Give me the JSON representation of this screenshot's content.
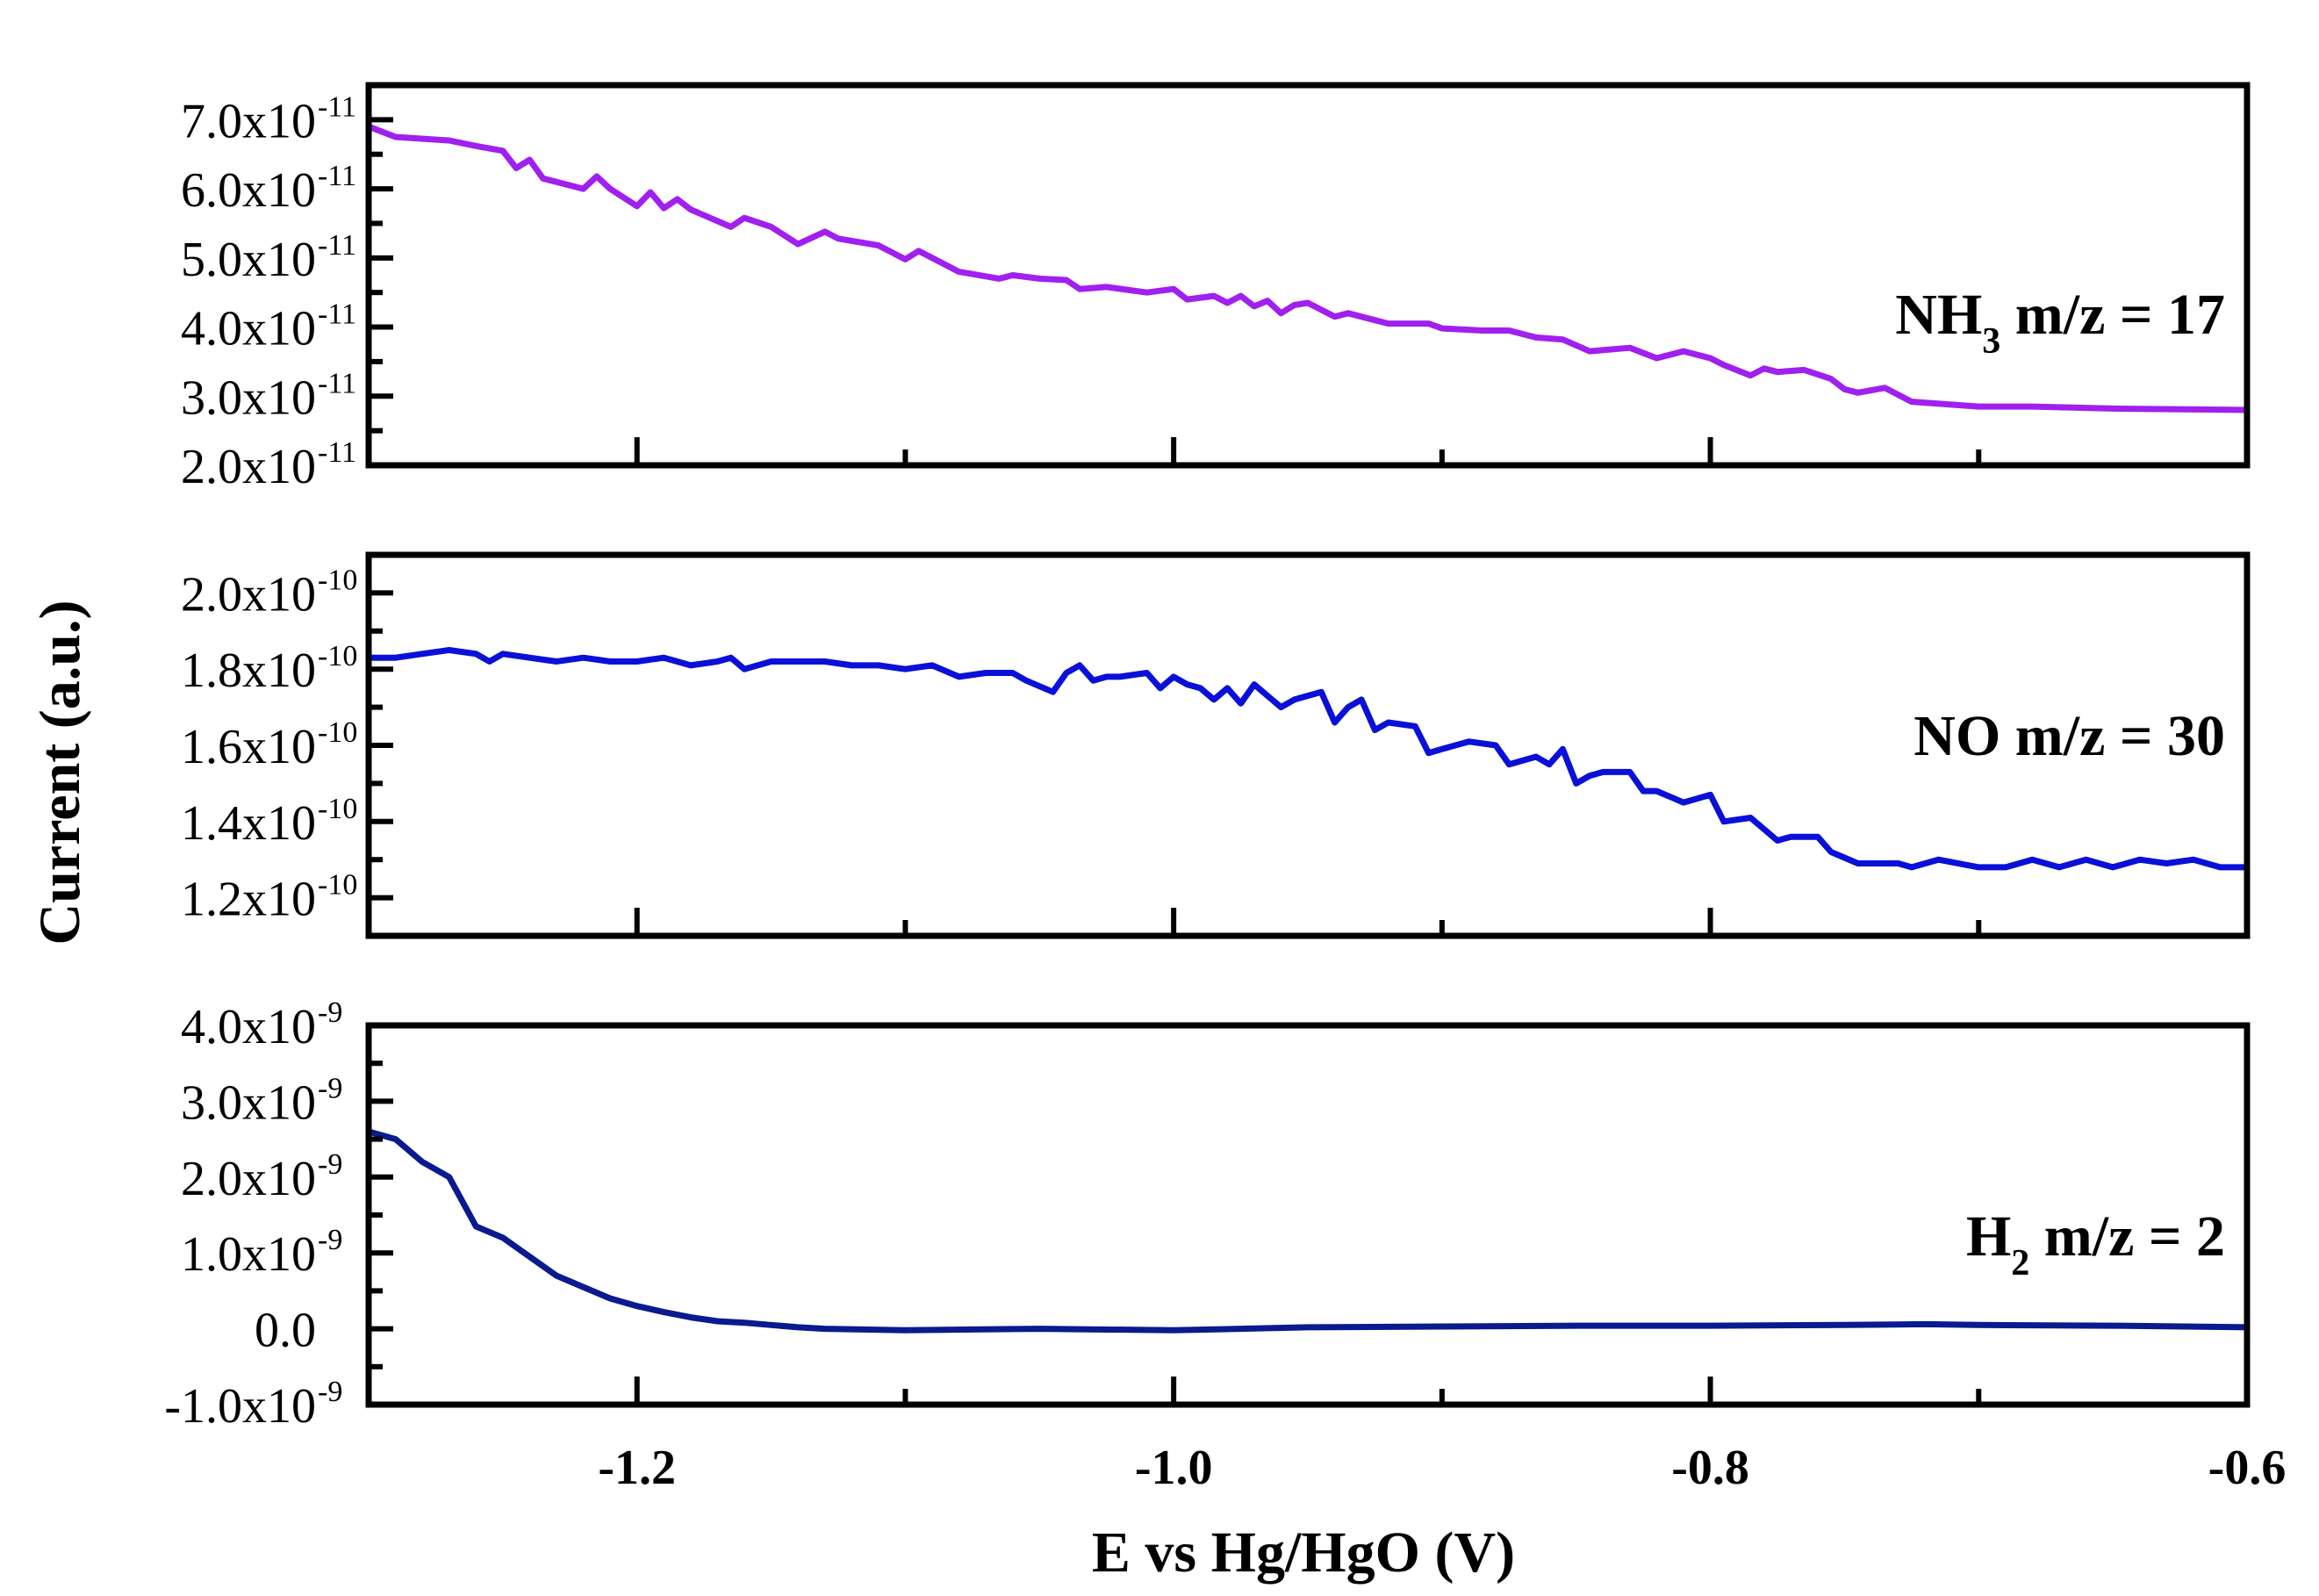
{
  "chart_data": {
    "type": "line",
    "layout": "stacked-panels",
    "ylabel": "Current (a.u.)",
    "xlabel": "E vs Hg/HgO (V)",
    "xlim": [
      -1.3,
      -0.6
    ],
    "x_ticks": [
      -1.2,
      -1.0,
      -0.8,
      -0.6
    ],
    "x_tick_labels": [
      "-1.2",
      "-1.0",
      "-0.8",
      "-0.6"
    ],
    "panels": [
      {
        "id": "nh3",
        "series_name": "NH3 m/z = 17",
        "label_main": "NH",
        "label_sub": "3",
        "label_rest": " m/z = 17",
        "color": "#a020f0",
        "ylim": [
          2e-11,
          7.5e-11
        ],
        "y_ticks": [
          2e-11,
          3e-11,
          4e-11,
          5e-11,
          6e-11,
          7e-11
        ],
        "y_tick_mantissas": [
          "2.0x10",
          "3.0x10",
          "4.0x10",
          "5.0x10",
          "6.0x10",
          "7.0x10"
        ],
        "y_tick_exponents": [
          "-11",
          "-11",
          "-11",
          "-11",
          "-11",
          "-11"
        ],
        "x": [
          -1.3,
          -1.29,
          -1.27,
          -1.26,
          -1.25,
          -1.245,
          -1.24,
          -1.235,
          -1.22,
          -1.215,
          -1.21,
          -1.2,
          -1.195,
          -1.19,
          -1.185,
          -1.18,
          -1.165,
          -1.16,
          -1.15,
          -1.14,
          -1.13,
          -1.125,
          -1.11,
          -1.1,
          -1.095,
          -1.08,
          -1.065,
          -1.06,
          -1.05,
          -1.04,
          -1.035,
          -1.025,
          -1.01,
          -1.0,
          -0.995,
          -0.985,
          -0.98,
          -0.975,
          -0.97,
          -0.965,
          -0.96,
          -0.955,
          -0.95,
          -0.94,
          -0.935,
          -0.92,
          -0.905,
          -0.9,
          -0.885,
          -0.875,
          -0.865,
          -0.855,
          -0.845,
          -0.83,
          -0.82,
          -0.81,
          -0.8,
          -0.795,
          -0.785,
          -0.78,
          -0.775,
          -0.765,
          -0.755,
          -0.75,
          -0.745,
          -0.735,
          -0.725,
          -0.7,
          -0.68,
          -0.65,
          -0.6
        ],
        "y": [
          6.9e-11,
          6.75e-11,
          6.7e-11,
          6.62e-11,
          6.55e-11,
          6.3e-11,
          6.42e-11,
          6.15e-11,
          6e-11,
          6.18e-11,
          6e-11,
          5.75e-11,
          5.95e-11,
          5.72e-11,
          5.85e-11,
          5.7e-11,
          5.45e-11,
          5.58e-11,
          5.45e-11,
          5.2e-11,
          5.38e-11,
          5.28e-11,
          5.18e-11,
          4.98e-11,
          5.1e-11,
          4.8e-11,
          4.7e-11,
          4.75e-11,
          4.7e-11,
          4.68e-11,
          4.55e-11,
          4.58e-11,
          4.5e-11,
          4.55e-11,
          4.4e-11,
          4.45e-11,
          4.35e-11,
          4.45e-11,
          4.3e-11,
          4.38e-11,
          4.2e-11,
          4.32e-11,
          4.35e-11,
          4.15e-11,
          4.2e-11,
          4.05e-11,
          4.05e-11,
          3.98e-11,
          3.95e-11,
          3.95e-11,
          3.85e-11,
          3.82e-11,
          3.65e-11,
          3.7e-11,
          3.55e-11,
          3.65e-11,
          3.55e-11,
          3.45e-11,
          3.3e-11,
          3.4e-11,
          3.35e-11,
          3.38e-11,
          3.25e-11,
          3.1e-11,
          3.05e-11,
          3.12e-11,
          2.92e-11,
          2.85e-11,
          2.85e-11,
          2.82e-11,
          2.8e-11
        ]
      },
      {
        "id": "no",
        "series_name": "NO m/z = 30",
        "label_main": "NO m/z = 30",
        "label_sub": "",
        "label_rest": "",
        "color": "#0a10d8",
        "ylim": [
          1.1e-10,
          2.1e-10
        ],
        "y_ticks": [
          1.2e-10,
          1.4e-10,
          1.6e-10,
          1.8e-10,
          2e-10
        ],
        "y_tick_mantissas": [
          "1.2x10",
          "1.4x10",
          "1.6x10",
          "1.8x10",
          "2.0x10"
        ],
        "y_tick_exponents": [
          "-10",
          "-10",
          "-10",
          "-10",
          "-10"
        ],
        "x": [
          -1.3,
          -1.29,
          -1.28,
          -1.27,
          -1.26,
          -1.255,
          -1.25,
          -1.24,
          -1.23,
          -1.22,
          -1.21,
          -1.2,
          -1.19,
          -1.18,
          -1.17,
          -1.165,
          -1.16,
          -1.15,
          -1.14,
          -1.13,
          -1.12,
          -1.11,
          -1.1,
          -1.09,
          -1.08,
          -1.07,
          -1.06,
          -1.055,
          -1.045,
          -1.04,
          -1.035,
          -1.03,
          -1.025,
          -1.02,
          -1.01,
          -1.005,
          -1.0,
          -0.995,
          -0.99,
          -0.985,
          -0.98,
          -0.975,
          -0.97,
          -0.965,
          -0.96,
          -0.955,
          -0.945,
          -0.94,
          -0.935,
          -0.93,
          -0.925,
          -0.92,
          -0.91,
          -0.905,
          -0.9,
          -0.89,
          -0.88,
          -0.875,
          -0.87,
          -0.865,
          -0.86,
          -0.855,
          -0.85,
          -0.845,
          -0.84,
          -0.83,
          -0.825,
          -0.82,
          -0.81,
          -0.805,
          -0.8,
          -0.795,
          -0.785,
          -0.775,
          -0.77,
          -0.76,
          -0.755,
          -0.745,
          -0.73,
          -0.725,
          -0.715,
          -0.7,
          -0.69,
          -0.68,
          -0.67,
          -0.66,
          -0.65,
          -0.64,
          -0.63,
          -0.62,
          -0.61,
          -0.6
        ],
        "y": [
          1.83e-10,
          1.83e-10,
          1.84e-10,
          1.85e-10,
          1.84e-10,
          1.82e-10,
          1.84e-10,
          1.83e-10,
          1.82e-10,
          1.83e-10,
          1.82e-10,
          1.82e-10,
          1.83e-10,
          1.81e-10,
          1.82e-10,
          1.83e-10,
          1.8e-10,
          1.82e-10,
          1.82e-10,
          1.82e-10,
          1.81e-10,
          1.81e-10,
          1.8e-10,
          1.81e-10,
          1.78e-10,
          1.79e-10,
          1.79e-10,
          1.77e-10,
          1.74e-10,
          1.79e-10,
          1.81e-10,
          1.77e-10,
          1.78e-10,
          1.78e-10,
          1.79e-10,
          1.75e-10,
          1.78e-10,
          1.76e-10,
          1.75e-10,
          1.72e-10,
          1.75e-10,
          1.71e-10,
          1.76e-10,
          1.73e-10,
          1.7e-10,
          1.72e-10,
          1.74e-10,
          1.66e-10,
          1.7e-10,
          1.72e-10,
          1.64e-10,
          1.66e-10,
          1.65e-10,
          1.58e-10,
          1.59e-10,
          1.61e-10,
          1.6e-10,
          1.55e-10,
          1.56e-10,
          1.57e-10,
          1.55e-10,
          1.59e-10,
          1.5e-10,
          1.52e-10,
          1.53e-10,
          1.53e-10,
          1.48e-10,
          1.48e-10,
          1.45e-10,
          1.46e-10,
          1.47e-10,
          1.4e-10,
          1.41e-10,
          1.35e-10,
          1.36e-10,
          1.36e-10,
          1.32e-10,
          1.29e-10,
          1.29e-10,
          1.28e-10,
          1.3e-10,
          1.28e-10,
          1.28e-10,
          1.3e-10,
          1.28e-10,
          1.3e-10,
          1.28e-10,
          1.3e-10,
          1.29e-10,
          1.3e-10,
          1.28e-10,
          1.28e-10
        ]
      },
      {
        "id": "h2",
        "series_name": "H2 m/z = 2",
        "label_main": "H",
        "label_sub": "2",
        "label_rest": " m/z = 2",
        "color": "#0a1a8f",
        "ylim": [
          -1e-09,
          4e-09
        ],
        "y_ticks": [
          -1e-09,
          0.0,
          1e-09,
          2e-09,
          3e-09,
          4e-09
        ],
        "y_tick_mantissas": [
          "-1.0x10",
          "0.0",
          "1.0x10",
          "2.0x10",
          "3.0x10",
          "4.0x10"
        ],
        "y_tick_exponents": [
          "-9",
          "",
          "-9",
          "-9",
          "-9",
          "-9"
        ],
        "x": [
          -1.3,
          -1.29,
          -1.28,
          -1.27,
          -1.26,
          -1.25,
          -1.24,
          -1.23,
          -1.22,
          -1.21,
          -1.2,
          -1.19,
          -1.18,
          -1.17,
          -1.16,
          -1.15,
          -1.14,
          -1.13,
          -1.1,
          -1.05,
          -1.0,
          -0.95,
          -0.9,
          -0.85,
          -0.8,
          -0.75,
          -0.72,
          -0.7,
          -0.65,
          -0.6
        ],
        "y": [
          2.6e-09,
          2.5e-09,
          2.2e-09,
          2e-09,
          1.35e-09,
          1.2e-09,
          9.5e-10,
          7e-10,
          5.5e-10,
          4e-10,
          3e-10,
          2.2e-10,
          1.5e-10,
          1e-10,
          8e-11,
          5e-11,
          2e-11,
          0.0,
          -2e-11,
          0.0,
          -2e-11,
          2e-11,
          3e-11,
          4e-11,
          4e-11,
          5e-11,
          6e-11,
          5e-11,
          4e-11,
          2e-11
        ]
      }
    ]
  }
}
